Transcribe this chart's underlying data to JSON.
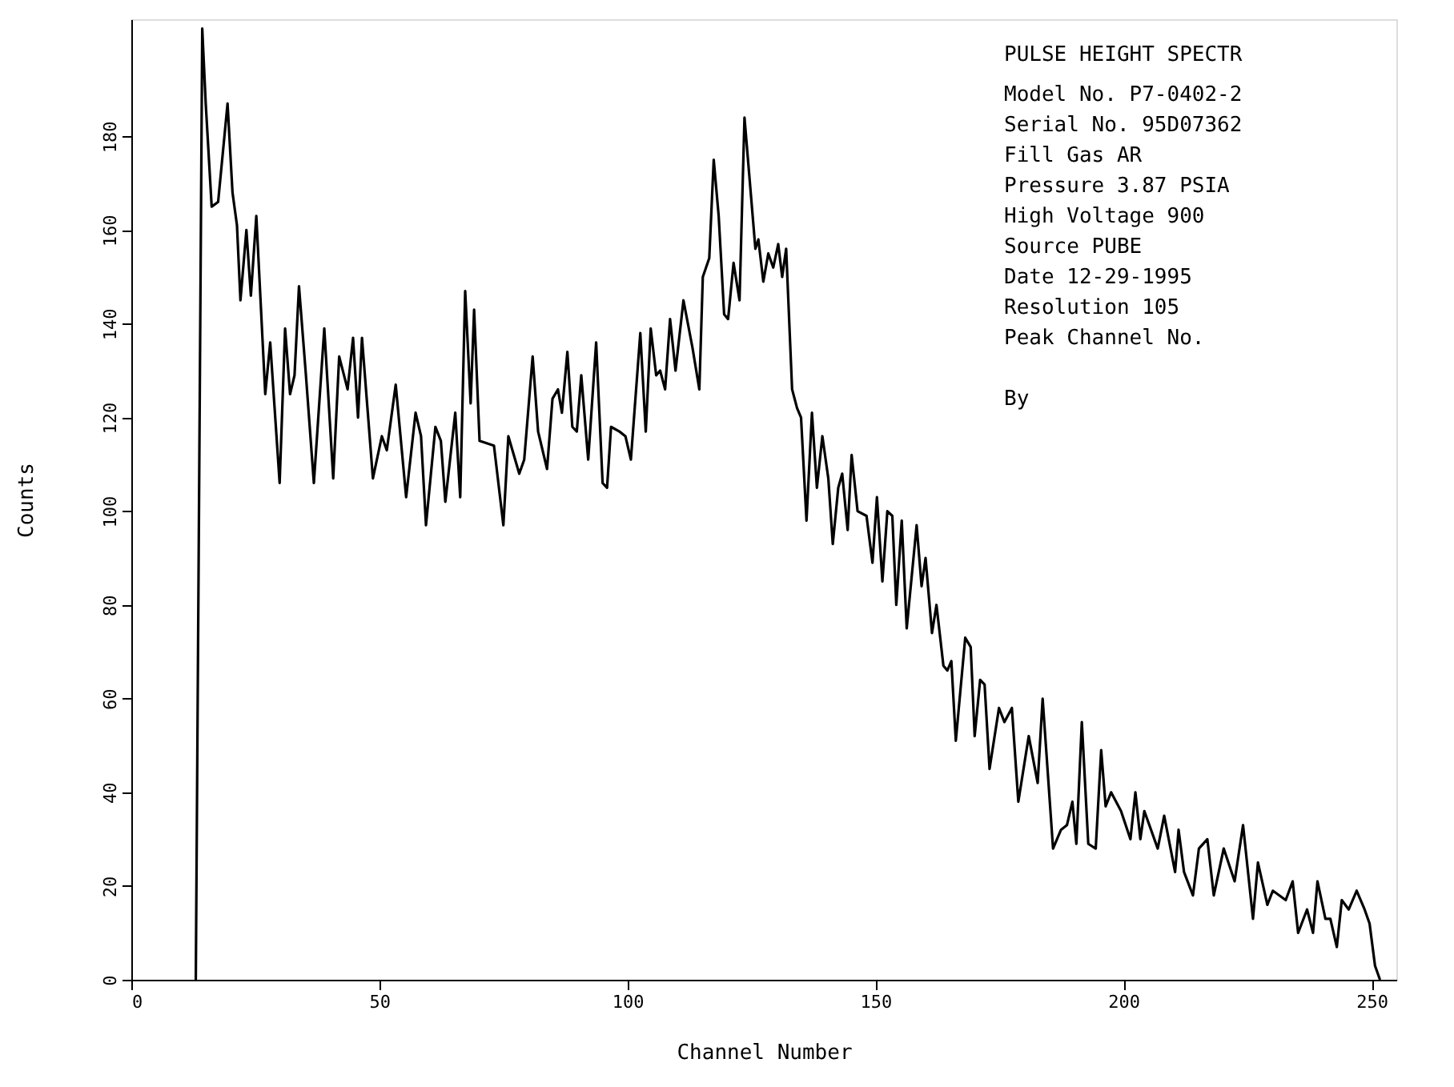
{
  "chart_data": {
    "type": "line",
    "xlabel": "Channel Number",
    "ylabel": "Counts",
    "xlim": [
      0,
      255
    ],
    "ylim": [
      0,
      205
    ],
    "xticks": [
      0,
      50,
      100,
      150,
      200,
      250
    ],
    "yticks": [
      0,
      20,
      40,
      60,
      80,
      100,
      120,
      140,
      160,
      180
    ],
    "grid": false,
    "marker": "none",
    "line_style": "solid",
    "annotations": [
      "PULSE HEIGHT SPECTR",
      "Model No. P7-0402-2",
      "Serial No. 95D07362",
      "Fill Gas AR",
      "Pressure 3.87 PSIA",
      "High Voltage 900",
      "Source PUBE",
      "Date  12-29-1995",
      "Resolution       105",
      "Peak Channel No.",
      "By"
    ],
    "series": [
      {
        "color": "#000000",
        "x": [
          13,
          14.3,
          15,
          16.2,
          17.5,
          19.4,
          20.4,
          21.3,
          22,
          23.2,
          24.1,
          25.2,
          27,
          28,
          29.9,
          31,
          32,
          32.9,
          33.8,
          35.2,
          36.8,
          38.9,
          40.7,
          41.9,
          43.6,
          44.7,
          45.7,
          46.5,
          48.7,
          50.5,
          51.5,
          53.3,
          55.4,
          57.3,
          58.4,
          59.4,
          61.3,
          62.4,
          63.3,
          65.3,
          66.3,
          67.3,
          68.4,
          69.1,
          70.2,
          73.1,
          75,
          76,
          78.2,
          79.2,
          80.9,
          82,
          83.8,
          84.9,
          86,
          86.8,
          87.9,
          88.9,
          89.8,
          90.7,
          92.1,
          93.7,
          95,
          95.9,
          96.7,
          98.4,
          99.6,
          100.7,
          102.6,
          103.7,
          104.7,
          105.8,
          106.6,
          107.6,
          108.6,
          109.7,
          111.3,
          113.1,
          114.5,
          115.2,
          116.5,
          117.4,
          118.4,
          119.5,
          120.3,
          121.4,
          122.6,
          123.6,
          125.8,
          126.4,
          127.4,
          128.4,
          129.4,
          130.4,
          131.2,
          132,
          133.2,
          134.2,
          135,
          136.1,
          137.2,
          138.2,
          139.3,
          140.5,
          141.4,
          142.5,
          143.3,
          144.4,
          145.2,
          146.4,
          148.2,
          149.4,
          150.3,
          151.4,
          152.4,
          153.4,
          154.2,
          155.3,
          156.3,
          158.3,
          159.3,
          160.1,
          161.4,
          162.3,
          163.7,
          164.5,
          165.3,
          166.2,
          168.1,
          169.2,
          170,
          171.1,
          172,
          173,
          174.9,
          176,
          177.5,
          178.8,
          180.9,
          182.7,
          183.7,
          185.8,
          187.4,
          188.6,
          189.7,
          190.5,
          191.6,
          192.9,
          194.4,
          195.5,
          196.4,
          197.5,
          199.5,
          201.4,
          202.4,
          203.4,
          204.2,
          206.9,
          208.2,
          210.4,
          211.1,
          212.2,
          214,
          215.2,
          216.9,
          218.2,
          220.2,
          222.4,
          224.1,
          226.1,
          227.1,
          229,
          230.1,
          232.7,
          234.1,
          235.2,
          237,
          238.2,
          239.1,
          240.7,
          241.7,
          243,
          244,
          245.4,
          247,
          248.6,
          249.6,
          250.7,
          251.7
        ],
        "values": [
          0,
          203,
          187,
          165,
          166,
          187,
          168,
          161,
          145,
          160,
          146,
          163,
          125,
          136,
          106,
          139,
          125,
          129,
          148,
          129,
          106,
          139,
          107,
          133,
          126,
          137,
          120,
          137,
          107,
          116,
          113,
          127,
          103,
          121,
          116,
          97,
          118,
          115,
          102,
          121,
          103,
          147,
          123,
          143,
          115,
          114,
          97,
          116,
          108,
          111,
          133,
          117,
          109,
          124,
          126,
          121,
          134,
          118,
          117,
          129,
          111,
          136,
          106,
          105,
          118,
          117,
          116,
          111,
          138,
          117,
          139,
          129,
          130,
          126,
          141,
          130,
          145,
          135,
          126,
          150,
          154,
          175,
          163,
          142,
          141,
          153,
          145,
          184,
          156,
          158,
          149,
          155,
          152,
          157,
          150,
          156,
          126,
          122,
          120,
          98,
          121,
          105,
          116,
          107,
          93,
          105,
          108,
          96,
          112,
          100,
          99,
          89,
          103,
          85,
          100,
          99,
          80,
          98,
          75,
          97,
          84,
          90,
          74,
          80,
          67,
          66,
          68,
          51,
          73,
          71,
          52,
          64,
          63,
          45,
          58,
          55,
          58,
          38,
          52,
          42,
          60,
          28,
          32,
          33,
          38,
          29,
          55,
          29,
          28,
          49,
          37,
          40,
          36,
          30,
          40,
          30,
          36,
          28,
          35,
          23,
          32,
          23,
          18,
          28,
          30,
          18,
          28,
          21,
          33,
          13,
          25,
          16,
          19,
          17,
          21,
          10,
          15,
          10,
          21,
          13,
          13,
          7,
          17,
          15,
          19,
          15,
          12,
          3,
          0
        ]
      }
    ]
  }
}
